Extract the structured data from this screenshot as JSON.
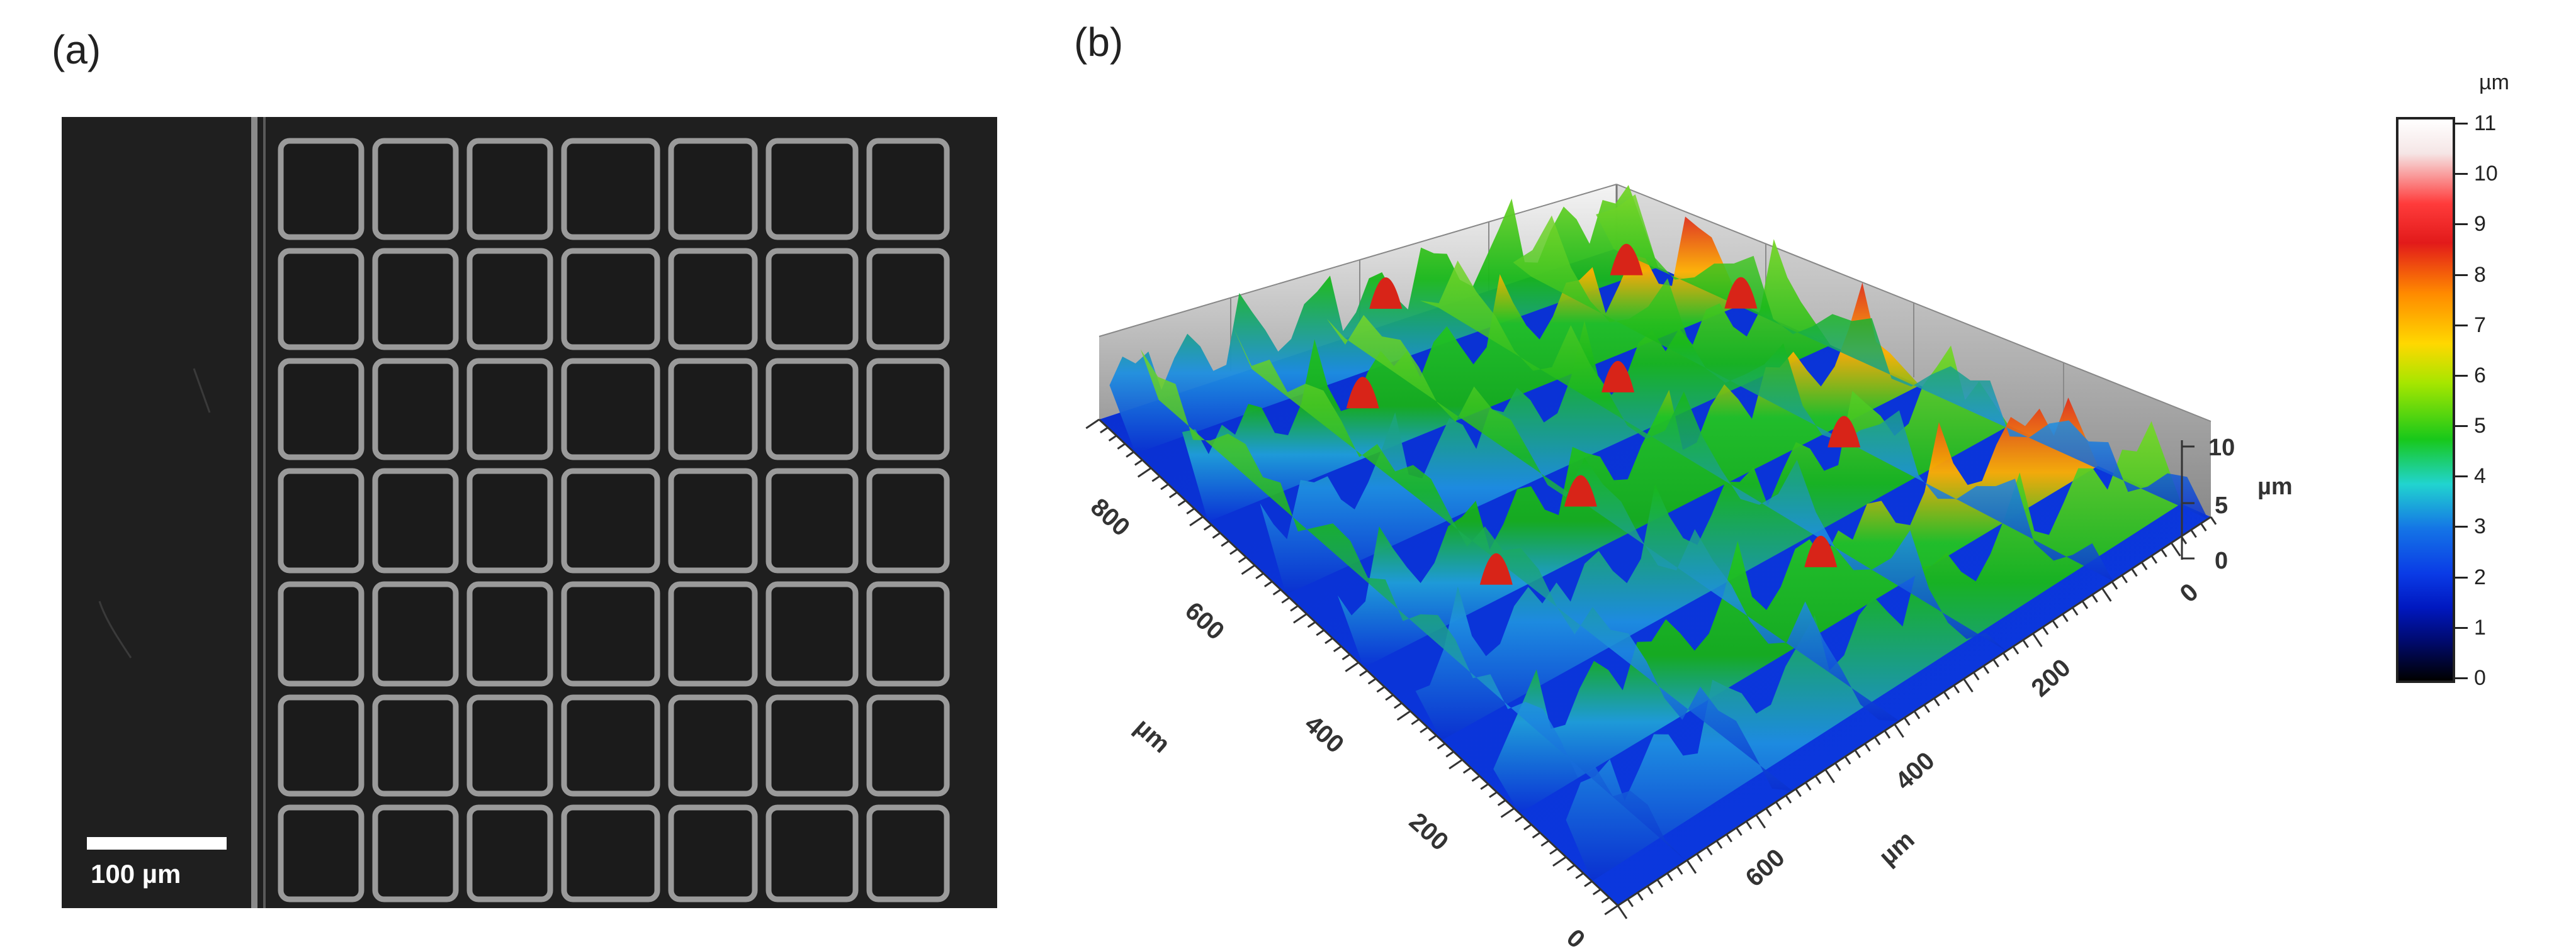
{
  "panels": {
    "a": {
      "label": "(a)",
      "scale_bar": "100 µm"
    },
    "b": {
      "label": "(b)",
      "z_axis": {
        "ticks": [
          "0",
          "5",
          "10"
        ],
        "unit": "µm"
      },
      "left_axis": {
        "ticks": [
          "800",
          "600",
          "400",
          "200",
          "0"
        ],
        "unit": "µm"
      },
      "right_axis": {
        "ticks": [
          "0",
          "200",
          "400",
          "600"
        ],
        "unit": "µm"
      }
    }
  },
  "colorbar": {
    "unit": "µm",
    "ticks": [
      "11",
      "10",
      "9",
      "8",
      "7",
      "6",
      "5",
      "4",
      "3",
      "2",
      "1",
      "0"
    ],
    "colors": {
      "high": "#ffffff",
      "red": "#e21a1a",
      "orange": "#ff8a00",
      "yellow": "#ffd800",
      "green": "#18c81a",
      "cyan": "#21d4cf",
      "blue": "#0a3be6",
      "low": "#000000"
    }
  }
}
